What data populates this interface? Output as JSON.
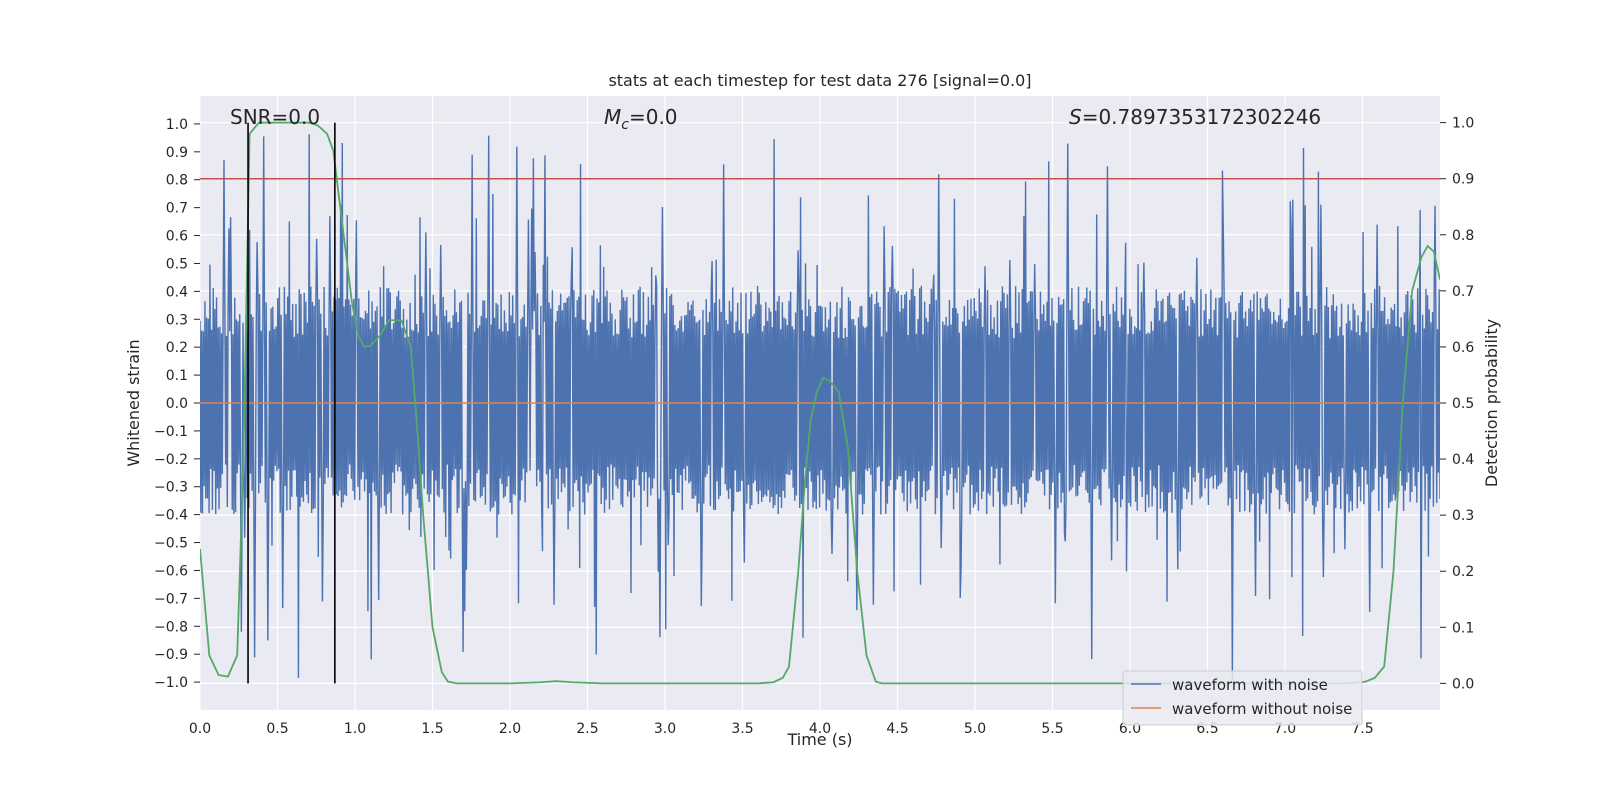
{
  "chart_data": {
    "type": "line",
    "title": "stats at each timestep for test data 276 [signal=0.0]",
    "xlabel": "Time (s)",
    "ylabel": "Whitened strain",
    "ylabel_right": "Detection probability",
    "xlim": [
      0.0,
      8.0
    ],
    "ylim": [
      -1.1,
      1.1
    ],
    "ylim_right": [
      -0.0475,
      1.0475
    ],
    "x_ticks": [
      "0.0",
      "0.5",
      "1.0",
      "1.5",
      "2.0",
      "2.5",
      "3.0",
      "3.5",
      "4.0",
      "4.5",
      "5.0",
      "5.5",
      "6.0",
      "6.5",
      "7.0",
      "7.5"
    ],
    "y_ticks": [
      "1.0",
      "0.9",
      "0.8",
      "0.7",
      "0.6",
      "0.5",
      "0.4",
      "0.3",
      "0.2",
      "0.1",
      "0.0",
      "−0.1",
      "−0.2",
      "−0.3",
      "−0.4",
      "−0.5",
      "−0.6",
      "−0.7",
      "−0.8",
      "−0.9",
      "−1.0"
    ],
    "y_right_ticks": [
      "1.0",
      "0.9",
      "0.8",
      "0.7",
      "0.6",
      "0.5",
      "0.4",
      "0.3",
      "0.2",
      "0.1",
      "0.0"
    ],
    "grid": true,
    "annotations": {
      "snr": "SNR=0.0",
      "mc_symbol": "M",
      "mc_sub": "c",
      "mc_value": "=0.0",
      "s_symbol": "S",
      "s_value": "=0.7897353172302246"
    },
    "legend": {
      "placement": "lower-right",
      "entries": [
        "waveform with noise",
        "waveform without noise"
      ]
    },
    "colors": {
      "noise": "#4c72b0",
      "clean": "#dd8452",
      "prob": "#55a868",
      "threshold": "#c44e52",
      "marker": "#000000",
      "bg": "#eaeaf2"
    },
    "noise_series": {
      "name": "waveform with noise",
      "duration": 8.0,
      "samples": 1500,
      "envelope_pos": 0.42,
      "envelope_neg": -0.4,
      "spike_top": 0.97,
      "spike_bottom": -1.0
    },
    "clean_series": {
      "name": "waveform without noise",
      "value": 0.0
    },
    "threshold": {
      "value": 0.9,
      "axis": "right"
    },
    "markers_x": [
      0.31,
      0.87
    ],
    "prob_series": {
      "name": "detection probability",
      "x": [
        0.0,
        0.06,
        0.12,
        0.18,
        0.24,
        0.28,
        0.32,
        0.38,
        0.44,
        0.5,
        0.6,
        0.7,
        0.76,
        0.82,
        0.86,
        0.9,
        0.94,
        0.98,
        1.02,
        1.06,
        1.1,
        1.16,
        1.22,
        1.3,
        1.36,
        1.4,
        1.44,
        1.5,
        1.56,
        1.6,
        1.66,
        1.8,
        2.0,
        2.2,
        2.3,
        2.4,
        2.6,
        3.0,
        3.4,
        3.6,
        3.7,
        3.76,
        3.8,
        3.86,
        3.9,
        3.94,
        3.98,
        4.02,
        4.06,
        4.12,
        4.18,
        4.24,
        4.3,
        4.36,
        4.4,
        4.6,
        5.0,
        5.5,
        6.0,
        6.5,
        7.0,
        7.4,
        7.52,
        7.58,
        7.64,
        7.7,
        7.76,
        7.82,
        7.88,
        7.92,
        7.96,
        8.0
      ],
      "y": [
        0.24,
        0.05,
        0.015,
        0.012,
        0.05,
        0.4,
        0.98,
        1.0,
        1.0,
        1.0,
        1.0,
        1.0,
        0.995,
        0.98,
        0.95,
        0.86,
        0.77,
        0.68,
        0.62,
        0.6,
        0.602,
        0.62,
        0.648,
        0.647,
        0.6,
        0.46,
        0.3,
        0.1,
        0.02,
        0.003,
        0.0,
        0.0,
        0.0,
        0.002,
        0.004,
        0.002,
        0.0,
        0.0,
        0.0,
        0.0,
        0.002,
        0.01,
        0.03,
        0.2,
        0.35,
        0.47,
        0.52,
        0.545,
        0.54,
        0.52,
        0.42,
        0.2,
        0.05,
        0.003,
        0.0,
        0.0,
        0.0,
        0.0,
        0.0,
        0.0,
        0.0,
        0.0,
        0.003,
        0.01,
        0.03,
        0.2,
        0.5,
        0.7,
        0.76,
        0.78,
        0.77,
        0.72
      ]
    }
  }
}
